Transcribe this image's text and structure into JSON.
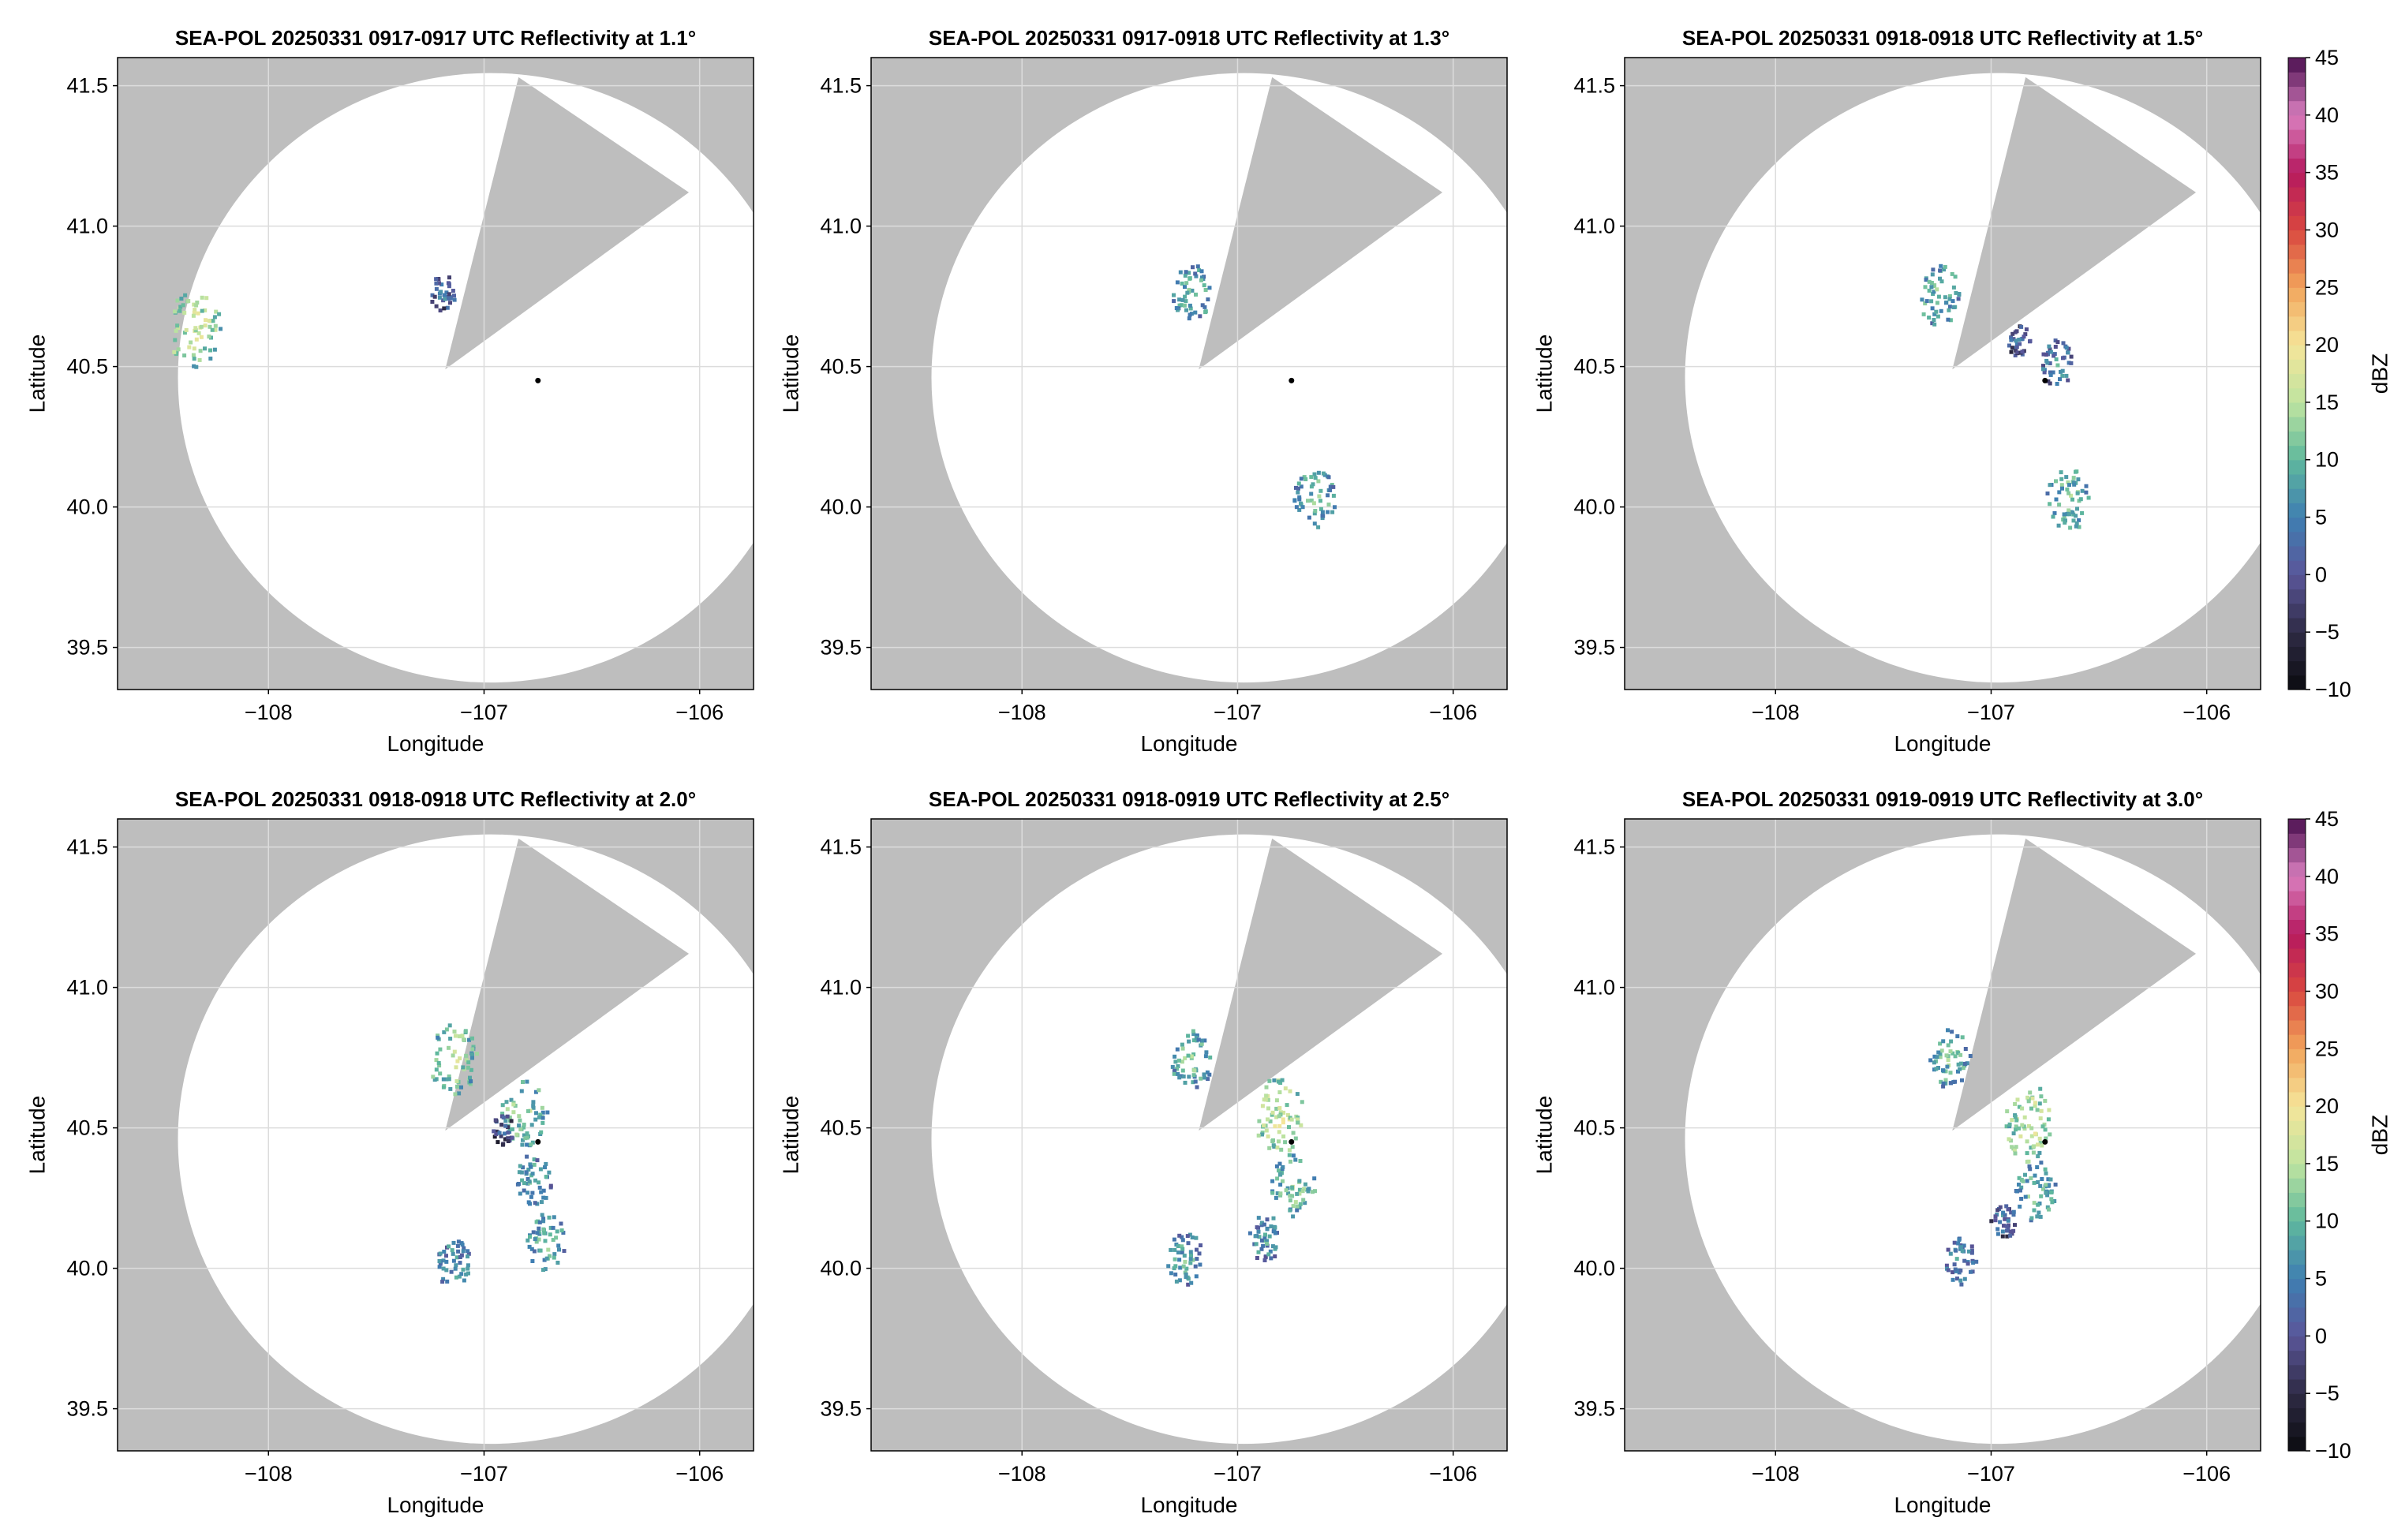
{
  "chart_data": [
    {
      "type": "heatmap",
      "title": "SEA-POL 20250331 0917-0917 UTC Reflectivity at 1.1°",
      "xlabel": "Longitude",
      "ylabel": "Latitude",
      "xlim": [
        -108.7,
        -105.75
      ],
      "ylim": [
        39.35,
        41.6
      ],
      "xticks": [
        "−108",
        "−107",
        "−106"
      ],
      "yticks": [
        "39.5",
        "40.0",
        "40.5",
        "41.0",
        "41.5"
      ],
      "radar_location": [
        -106.75,
        40.45
      ],
      "echoes": [
        {
          "lon": -107.2,
          "lat": 40.77,
          "dbz": 5
        },
        {
          "lon": -108.35,
          "lat": 40.64,
          "dbz": 17
        }
      ]
    },
    {
      "type": "heatmap",
      "title": "SEA-POL 20250331 0917-0918 UTC Reflectivity at 1.3°",
      "xlabel": "Longitude",
      "ylabel": "Latitude",
      "xlim": [
        -108.7,
        -105.75
      ],
      "ylim": [
        39.35,
        41.6
      ],
      "xticks": [
        "−108",
        "−107",
        "−106"
      ],
      "yticks": [
        "39.5",
        "40.0",
        "40.5",
        "41.0",
        "41.5"
      ],
      "radar_location": [
        -106.75,
        40.45
      ],
      "echoes": [
        {
          "lon": -107.22,
          "lat": 40.77,
          "dbz": 11
        },
        {
          "lon": -106.65,
          "lat": 40.04,
          "dbz": 12
        }
      ]
    },
    {
      "type": "heatmap",
      "title": "SEA-POL 20250331 0918-0918 UTC Reflectivity at 1.5°",
      "xlabel": "Longitude",
      "ylabel": "Latitude",
      "xlim": [
        -108.7,
        -105.75
      ],
      "ylim": [
        39.35,
        41.6
      ],
      "xticks": [
        "−108",
        "−107",
        "−106"
      ],
      "yticks": [
        "39.5",
        "40.0",
        "40.5",
        "41.0",
        "41.5"
      ],
      "radar_location": [
        -106.75,
        40.45
      ],
      "echoes": [
        {
          "lon": -107.25,
          "lat": 40.76,
          "dbz": 12
        },
        {
          "lon": -106.88,
          "lat": 40.6,
          "dbz": 4
        },
        {
          "lon": -106.7,
          "lat": 40.52,
          "dbz": 8
        },
        {
          "lon": -106.65,
          "lat": 40.03,
          "dbz": 13
        }
      ]
    },
    {
      "type": "heatmap",
      "title": "SEA-POL 20250331 0918-0918 UTC Reflectivity at 2.0°",
      "xlabel": "Longitude",
      "ylabel": "Latitude",
      "xlim": [
        -108.7,
        -105.75
      ],
      "ylim": [
        39.35,
        41.6
      ],
      "xticks": [
        "−108",
        "−107",
        "−106"
      ],
      "yticks": [
        "39.5",
        "40.0",
        "40.5",
        "41.0",
        "41.5"
      ],
      "radar_location": [
        -106.75,
        40.45
      ],
      "echoes": [
        {
          "lon": -107.15,
          "lat": 40.75,
          "dbz": 15
        },
        {
          "lon": -106.82,
          "lat": 40.56,
          "dbz": 14
        },
        {
          "lon": -106.92,
          "lat": 40.5,
          "dbz": 3
        },
        {
          "lon": -106.78,
          "lat": 40.32,
          "dbz": 10
        },
        {
          "lon": -106.72,
          "lat": 40.1,
          "dbz": 11
        },
        {
          "lon": -107.15,
          "lat": 40.02,
          "dbz": 9
        }
      ]
    },
    {
      "type": "heatmap",
      "title": "SEA-POL 20250331 0918-0919 UTC Reflectivity at 2.5°",
      "xlabel": "Longitude",
      "ylabel": "Latitude",
      "xlim": [
        -108.7,
        -105.75
      ],
      "ylim": [
        39.35,
        41.6
      ],
      "xticks": [
        "−108",
        "−107",
        "−106"
      ],
      "yticks": [
        "39.5",
        "40.0",
        "40.5",
        "41.0",
        "41.5"
      ],
      "radar_location": [
        -106.75,
        40.45
      ],
      "echoes": [
        {
          "lon": -107.22,
          "lat": 40.75,
          "dbz": 12
        },
        {
          "lon": -106.82,
          "lat": 40.55,
          "dbz": 17
        },
        {
          "lon": -106.75,
          "lat": 40.3,
          "dbz": 13
        },
        {
          "lon": -106.88,
          "lat": 40.12,
          "dbz": 9
        },
        {
          "lon": -107.25,
          "lat": 40.04,
          "dbz": 10
        }
      ]
    },
    {
      "type": "heatmap",
      "title": "SEA-POL 20250331 0919-0919 UTC Reflectivity at 3.0°",
      "xlabel": "Longitude",
      "ylabel": "Latitude",
      "xlim": [
        -108.7,
        -105.75
      ],
      "ylim": [
        39.35,
        41.6
      ],
      "xticks": [
        "−108",
        "−107",
        "−106"
      ],
      "yticks": [
        "39.5",
        "40.0",
        "40.5",
        "41.0",
        "41.5"
      ],
      "radar_location": [
        -106.75,
        40.45
      ],
      "echoes": [
        {
          "lon": -107.2,
          "lat": 40.75,
          "dbz": 12
        },
        {
          "lon": -106.82,
          "lat": 40.52,
          "dbz": 17
        },
        {
          "lon": -106.8,
          "lat": 40.28,
          "dbz": 12
        },
        {
          "lon": -106.95,
          "lat": 40.18,
          "dbz": 5
        },
        {
          "lon": -107.15,
          "lat": 40.03,
          "dbz": 8
        }
      ]
    }
  ],
  "colorbar": {
    "label": "dBZ",
    "range": [
      -10,
      45
    ],
    "ticks": [
      "−10",
      "−5",
      "0",
      "5",
      "10",
      "15",
      "20",
      "25",
      "30",
      "35",
      "40",
      "45"
    ]
  },
  "colors": {
    "outside_range": "#bebebe",
    "inside_range": "#ffffff",
    "grid": "#dcdcdc"
  }
}
